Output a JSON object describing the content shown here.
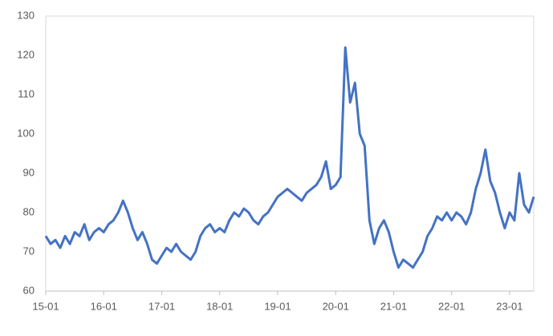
{
  "chart_data": {
    "type": "line",
    "x": [
      "15-01",
      "15-02",
      "15-03",
      "15-04",
      "15-05",
      "15-06",
      "15-07",
      "15-08",
      "15-09",
      "15-10",
      "15-11",
      "15-12",
      "16-01",
      "16-02",
      "16-03",
      "16-04",
      "16-05",
      "16-06",
      "16-07",
      "16-08",
      "16-09",
      "16-10",
      "16-11",
      "16-12",
      "17-01",
      "17-02",
      "17-03",
      "17-04",
      "17-05",
      "17-06",
      "17-07",
      "17-08",
      "17-09",
      "17-10",
      "17-11",
      "17-12",
      "18-01",
      "18-02",
      "18-03",
      "18-04",
      "18-05",
      "18-06",
      "18-07",
      "18-08",
      "18-09",
      "18-10",
      "18-11",
      "18-12",
      "19-01",
      "19-02",
      "19-03",
      "19-04",
      "19-05",
      "19-06",
      "19-07",
      "19-08",
      "19-09",
      "19-10",
      "19-11",
      "19-12",
      "20-01",
      "20-02",
      "20-03",
      "20-04",
      "20-05",
      "20-06",
      "20-07",
      "20-08",
      "20-09",
      "20-10",
      "20-11",
      "20-12",
      "21-01",
      "21-02",
      "21-03",
      "21-04",
      "21-05",
      "21-06",
      "21-07",
      "21-08",
      "21-09",
      "21-10",
      "21-11",
      "21-12",
      "22-01",
      "22-02",
      "22-03",
      "22-04",
      "22-05",
      "22-06",
      "22-07",
      "22-08",
      "22-09",
      "22-10",
      "22-11",
      "22-12",
      "23-01",
      "23-02",
      "23-03",
      "23-04",
      "23-05",
      "23-06"
    ],
    "series": [
      {
        "color": "#4472c4",
        "values": [
          74,
          72,
          73,
          71,
          74,
          72,
          75,
          74,
          77,
          73,
          75,
          76,
          75,
          77,
          78,
          80,
          83,
          80,
          76,
          73,
          75,
          72,
          68,
          67,
          69,
          71,
          70,
          72,
          70,
          69,
          68,
          70,
          74,
          76,
          77,
          75,
          76,
          75,
          78,
          80,
          79,
          81,
          80,
          78,
          77,
          79,
          80,
          82,
          84,
          85,
          86,
          85,
          84,
          83,
          85,
          86,
          87,
          89,
          93,
          86,
          87,
          89,
          122,
          108,
          113,
          100,
          97,
          78,
          72,
          76,
          78,
          75,
          70,
          66,
          68,
          67,
          66,
          68,
          70,
          74,
          76,
          79,
          78,
          80,
          78,
          80,
          79,
          77,
          80,
          86,
          90,
          96,
          88,
          85,
          80,
          76,
          80,
          78,
          90,
          82,
          80,
          84
        ]
      }
    ],
    "ylim": [
      60,
      130
    ],
    "yticks": [
      60,
      70,
      80,
      90,
      100,
      110,
      120,
      130
    ],
    "xticks": [
      "15-01",
      "16-01",
      "17-01",
      "18-01",
      "19-01",
      "20-01",
      "21-01",
      "22-01",
      "23-01"
    ]
  }
}
